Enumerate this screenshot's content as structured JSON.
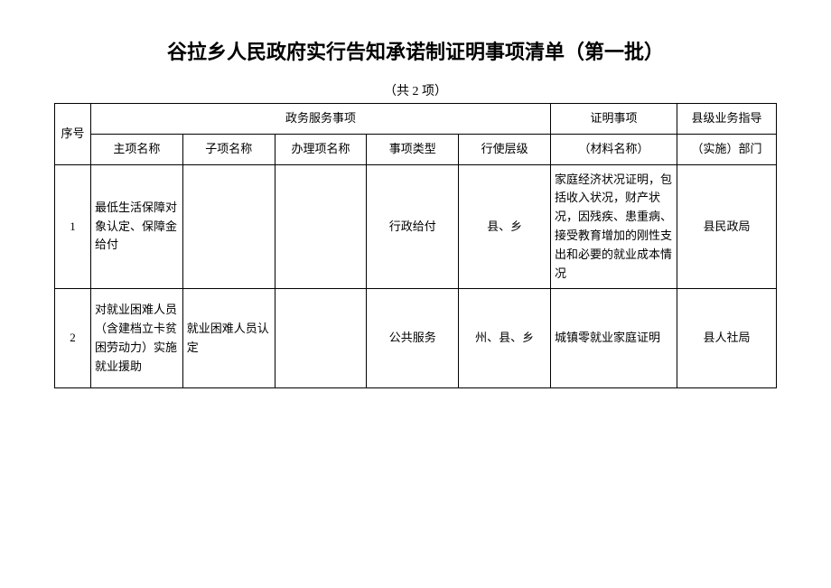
{
  "title": "谷拉乡人民政府实行告知承诺制证明事项清单（第一批）",
  "subtitle": "（共 2 项）",
  "headers": {
    "seq": "序号",
    "service_group": "政务服务事项",
    "main_name": "主项名称",
    "sub_name": "子项名称",
    "proc_name": "办理项名称",
    "type": "事项类型",
    "level": "行使层级",
    "cert": "证明事项",
    "cert_sub": "（材料名称）",
    "dept": "县级业务指导",
    "dept_sub": "（实施）部门"
  },
  "rows": [
    {
      "seq": "1",
      "main_name": "最低生活保障对象认定、保障金给付",
      "sub_name": "",
      "proc_name": "",
      "type": "行政给付",
      "level": "县、乡",
      "cert": "家庭经济状况证明，包括收入状况，财产状况，因残疾、患重病、接受教育增加的刚性支出和必要的就业成本情况",
      "dept": "县民政局"
    },
    {
      "seq": "2",
      "main_name": "对就业困难人员（含建档立卡贫困劳动力）实施就业援助",
      "sub_name": "就业困难人员认定",
      "proc_name": "",
      "type": "公共服务",
      "level": "州、县、乡",
      "cert": "城镇零就业家庭证明",
      "dept": "县人社局"
    }
  ],
  "colors": {
    "background": "#ffffff",
    "text": "#000000",
    "border": "#000000"
  },
  "font_sizes": {
    "title": 22,
    "subtitle": 14,
    "body": 13
  }
}
